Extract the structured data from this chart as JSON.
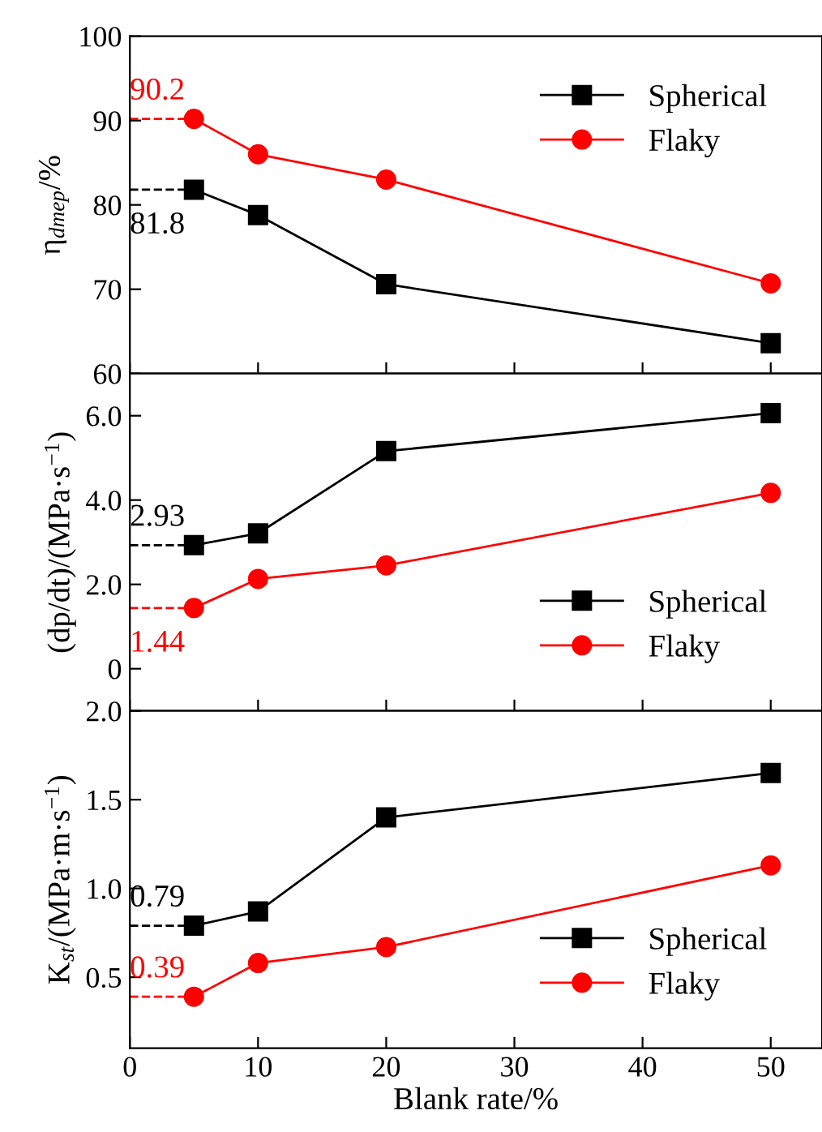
{
  "chart_data": [
    {
      "type": "line",
      "ylabel": "η$_{dmep}$/%",
      "xlim": [
        0,
        54
      ],
      "xticks": [
        0,
        10,
        20,
        30,
        40,
        50
      ],
      "ylim": [
        60,
        100
      ],
      "yticks": [
        60,
        70,
        80,
        90,
        100
      ],
      "tick_labels": "y",
      "legend": "top right",
      "grid": false,
      "line_style": "solid",
      "x": [
        5,
        10,
        20,
        50
      ],
      "series": [
        {
          "name": "Spherical",
          "color": "#000000",
          "marker": "square",
          "values": [
            81.8,
            78.8,
            70.6,
            63.6
          ],
          "value_labels": [
            "81.8",
            null,
            null,
            null
          ]
        },
        {
          "name": "Flaky",
          "color": "#ff0000",
          "marker": "circle",
          "values": [
            90.2,
            86.0,
            83.0,
            70.7
          ],
          "value_labels": [
            "90.2",
            null,
            null,
            null
          ]
        }
      ],
      "ref_lines": [
        {
          "axis": "y",
          "value": 81.8,
          "color": "#000000",
          "line_style": "dashed"
        },
        {
          "axis": "y",
          "value": 90.2,
          "color": "#ff0000",
          "line_style": "dashed"
        }
      ]
    },
    {
      "type": "line",
      "ylabel": "(dp/dt)/(MPa·s$^{−1}$)",
      "xlim": [
        0,
        54
      ],
      "xticks": [
        0,
        10,
        20,
        30,
        40,
        50
      ],
      "ylim": [
        -1,
        7
      ],
      "yticks": [
        0,
        {
          "value": 2,
          "label": "2.0"
        },
        {
          "value": 4,
          "label": "4.0"
        },
        {
          "value": 6,
          "label": "6.0"
        }
      ],
      "tick_labels": "y",
      "legend": "bottom right",
      "grid": false,
      "line_style": "solid",
      "x": [
        5,
        10,
        20,
        50
      ],
      "series": [
        {
          "name": "Spherical",
          "color": "#000000",
          "marker": "square",
          "values": [
            2.93,
            3.21,
            5.16,
            6.06
          ],
          "value_labels": [
            "2.93",
            null,
            null,
            null
          ]
        },
        {
          "name": "Flaky",
          "color": "#ff0000",
          "marker": "circle",
          "values": [
            1.44,
            2.13,
            2.45,
            4.17
          ],
          "value_labels": [
            "1.44",
            null,
            null,
            null
          ]
        }
      ],
      "ref_lines": [
        {
          "axis": "y",
          "value": 2.93,
          "color": "#000000",
          "line_style": "dashed"
        },
        {
          "axis": "y",
          "value": 1.44,
          "color": "#ff0000",
          "line_style": "dashed"
        }
      ]
    },
    {
      "type": "line",
      "xlabel": "Blank rate/%",
      "ylabel": "K$_{st}$/(MPa·m·s$^{−1}$)",
      "xlim": [
        0,
        54
      ],
      "xticks": [
        0,
        10,
        20,
        30,
        40,
        50
      ],
      "ylim": [
        0.1,
        2.0
      ],
      "yticks": [
        0.5,
        {
          "value": 1,
          "label": "1.0"
        },
        1.5,
        {
          "value": 2,
          "label": "2.0"
        }
      ],
      "legend": "bottom right",
      "grid": false,
      "line_style": "solid",
      "x": [
        5,
        10,
        20,
        50
      ],
      "series": [
        {
          "name": "Spherical",
          "color": "#000000",
          "marker": "square",
          "values": [
            0.79,
            0.87,
            1.4,
            1.65
          ],
          "value_labels": [
            "0.79",
            null,
            null,
            null
          ]
        },
        {
          "name": "Flaky",
          "color": "#ff0000",
          "marker": "circle",
          "values": [
            0.39,
            0.58,
            0.67,
            1.13
          ],
          "value_labels": [
            "0.39",
            null,
            null,
            null
          ]
        }
      ],
      "ref_lines": [
        {
          "axis": "y",
          "value": 0.79,
          "color": "#000000",
          "line_style": "dashed"
        },
        {
          "axis": "y",
          "value": 0.39,
          "color": "#ff0000",
          "line_style": "dashed"
        }
      ]
    }
  ]
}
